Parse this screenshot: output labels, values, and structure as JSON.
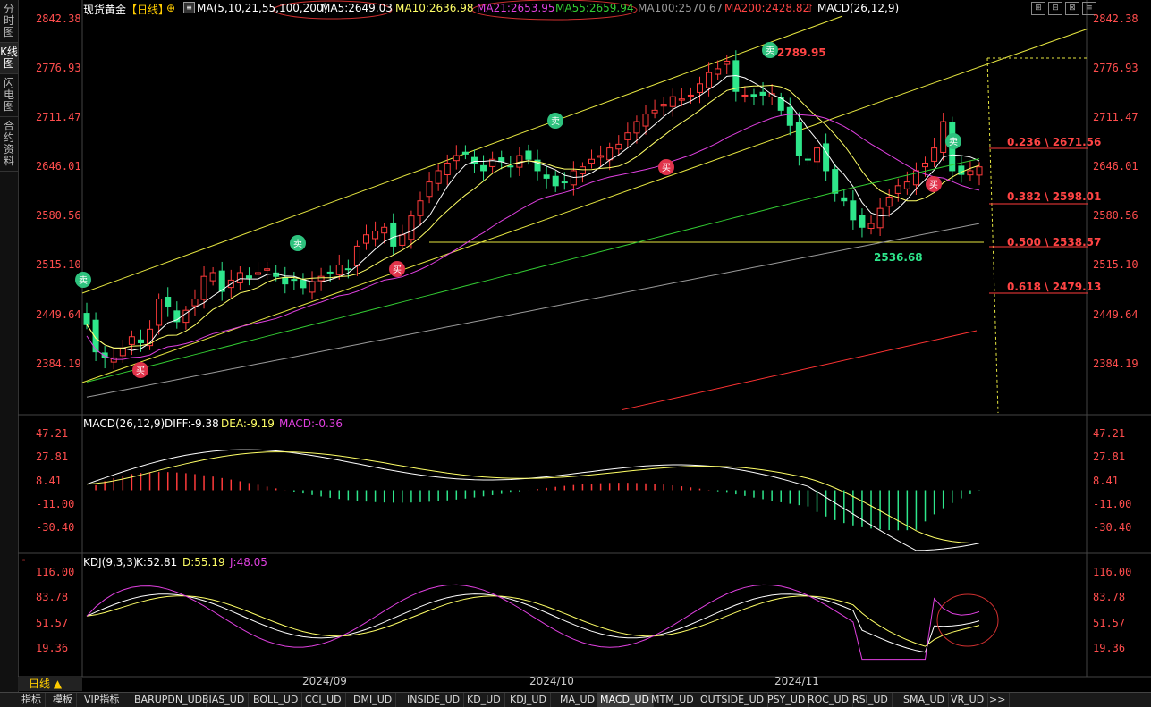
{
  "left_rail": [
    {
      "label": "分时图",
      "active": false
    },
    {
      "label": "K线图",
      "active": true
    },
    {
      "label": "闪电图",
      "active": false
    },
    {
      "label": "合约资料",
      "active": false
    }
  ],
  "header": {
    "symbol": "现货黄金",
    "period": "【日线】",
    "ma_def": "MA(5,10,21,55,100,200)",
    "ma5": "MA5:2649.03",
    "ma10": "MA10:2636.98",
    "ma21": "MA21:2653.95",
    "ma55": "MA55:2659.94",
    "ma100": "MA100:2570.67",
    "ma200": "MA200:2428.82",
    "macd_sel": "MACD(26,12,9)"
  },
  "window_icons": [
    "⊞",
    "⊟",
    "⊠",
    "≡"
  ],
  "price_ticks": [
    "2842.38",
    "2776.93",
    "2711.47",
    "2646.01",
    "2580.56",
    "2515.10",
    "2449.64",
    "2384.19"
  ],
  "macd_panel": {
    "title": "MACD(26,12,9)",
    "diff": "DIFF:-9.38",
    "dea": "DEA:-9.19",
    "macd": "MACD:-0.36",
    "ticks": [
      "47.21",
      "27.81",
      "8.41",
      "-11.00",
      "-30.40"
    ]
  },
  "kdj_panel": {
    "title": "KDJ(9,3,3)",
    "k": "K:52.81",
    "d": "D:55.19",
    "j": "J:48.05",
    "ticks": [
      "116.00",
      "83.78",
      "51.57",
      "19.36"
    ]
  },
  "x_labels": [
    "2024/09",
    "2024/10",
    "2024/11"
  ],
  "annotations": {
    "high": "2789.95",
    "low": "2536.68",
    "fib": [
      "0.236 \\ 2671.56",
      "0.382 \\ 2598.01",
      "0.500 \\ 2538.57",
      "0.618 \\ 2479.13"
    ],
    "buy": "买",
    "sell": "卖"
  },
  "period_selector": "日线 ▲",
  "bottom_tabs": [
    "指标",
    "模板",
    "VIP指标",
    "BARUPDN_UD",
    "BIAS_UD",
    "BOLL_UD",
    "CCI_UD",
    "DMI_UD",
    "INSIDE_UD",
    "KD_UD",
    "KDJ_UD",
    "MA_UD",
    "MACD_UD",
    "MTM_UD",
    "OUTSIDE_UD",
    "PSY_UD",
    "ROC_UD",
    "RSI_UD",
    "SMA_UD",
    "VR_UD",
    ">>"
  ],
  "active_tab": "MACD_UD",
  "colors": {
    "up": "#ff3b3b",
    "down": "#2ee68b",
    "ma5": "#ffffff",
    "ma10": "#ffff66",
    "ma21": "#e040e0",
    "ma55": "#33cc33",
    "ma100": "#999999",
    "ma200": "#ff3333"
  }
}
